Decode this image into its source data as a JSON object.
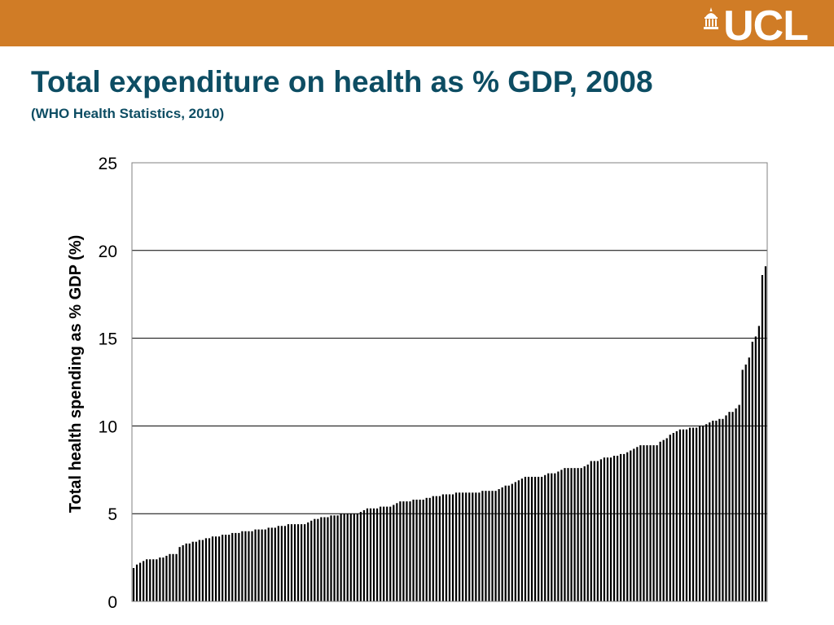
{
  "header": {
    "logo_text": "UCL",
    "band_color": "#d07c26"
  },
  "slide": {
    "title": "Total expenditure on health as % GDP, 2008",
    "subtitle": "(WHO Health Statistics, 2010)"
  },
  "chart_data": {
    "type": "bar",
    "title": "",
    "xlabel": "",
    "ylabel": "Total health spending as % GDP (%)",
    "ylim": [
      0,
      25
    ],
    "yticks": [
      "0",
      "5",
      "10",
      "15",
      "20",
      "25"
    ],
    "grid": true,
    "legend": "none",
    "bar_color": "#000000",
    "values": [
      1.9,
      2.1,
      2.2,
      2.3,
      2.4,
      2.4,
      2.4,
      2.4,
      2.5,
      2.5,
      2.6,
      2.7,
      2.7,
      2.7,
      3.1,
      3.2,
      3.3,
      3.3,
      3.4,
      3.4,
      3.5,
      3.5,
      3.6,
      3.6,
      3.7,
      3.7,
      3.7,
      3.8,
      3.8,
      3.8,
      3.9,
      3.9,
      3.9,
      4.0,
      4.0,
      4.0,
      4.0,
      4.1,
      4.1,
      4.1,
      4.1,
      4.2,
      4.2,
      4.2,
      4.3,
      4.3,
      4.3,
      4.4,
      4.4,
      4.4,
      4.4,
      4.4,
      4.4,
      4.5,
      4.6,
      4.7,
      4.7,
      4.8,
      4.8,
      4.8,
      4.9,
      4.9,
      4.9,
      5.0,
      5.0,
      5.0,
      5.0,
      5.0,
      5.0,
      5.1,
      5.2,
      5.3,
      5.3,
      5.3,
      5.3,
      5.4,
      5.4,
      5.4,
      5.4,
      5.5,
      5.6,
      5.7,
      5.7,
      5.7,
      5.7,
      5.8,
      5.8,
      5.8,
      5.8,
      5.9,
      5.9,
      6.0,
      6.0,
      6.0,
      6.1,
      6.1,
      6.1,
      6.1,
      6.2,
      6.2,
      6.2,
      6.2,
      6.2,
      6.2,
      6.2,
      6.2,
      6.3,
      6.3,
      6.3,
      6.3,
      6.3,
      6.4,
      6.5,
      6.6,
      6.6,
      6.7,
      6.8,
      6.9,
      7.0,
      7.1,
      7.1,
      7.1,
      7.1,
      7.1,
      7.1,
      7.2,
      7.3,
      7.3,
      7.3,
      7.4,
      7.5,
      7.6,
      7.6,
      7.6,
      7.6,
      7.6,
      7.6,
      7.7,
      7.8,
      8.0,
      8.0,
      8.0,
      8.1,
      8.2,
      8.2,
      8.2,
      8.3,
      8.3,
      8.4,
      8.4,
      8.5,
      8.6,
      8.7,
      8.8,
      8.9,
      8.9,
      8.9,
      8.9,
      8.9,
      8.9,
      9.1,
      9.2,
      9.3,
      9.5,
      9.6,
      9.7,
      9.8,
      9.8,
      9.8,
      9.9,
      9.9,
      9.9,
      10.0,
      10.0,
      10.1,
      10.2,
      10.3,
      10.3,
      10.4,
      10.4,
      10.6,
      10.8,
      10.8,
      11.0,
      11.2,
      13.2,
      13.5,
      13.9,
      14.8,
      15.1,
      15.7,
      18.6,
      19.1
    ]
  }
}
